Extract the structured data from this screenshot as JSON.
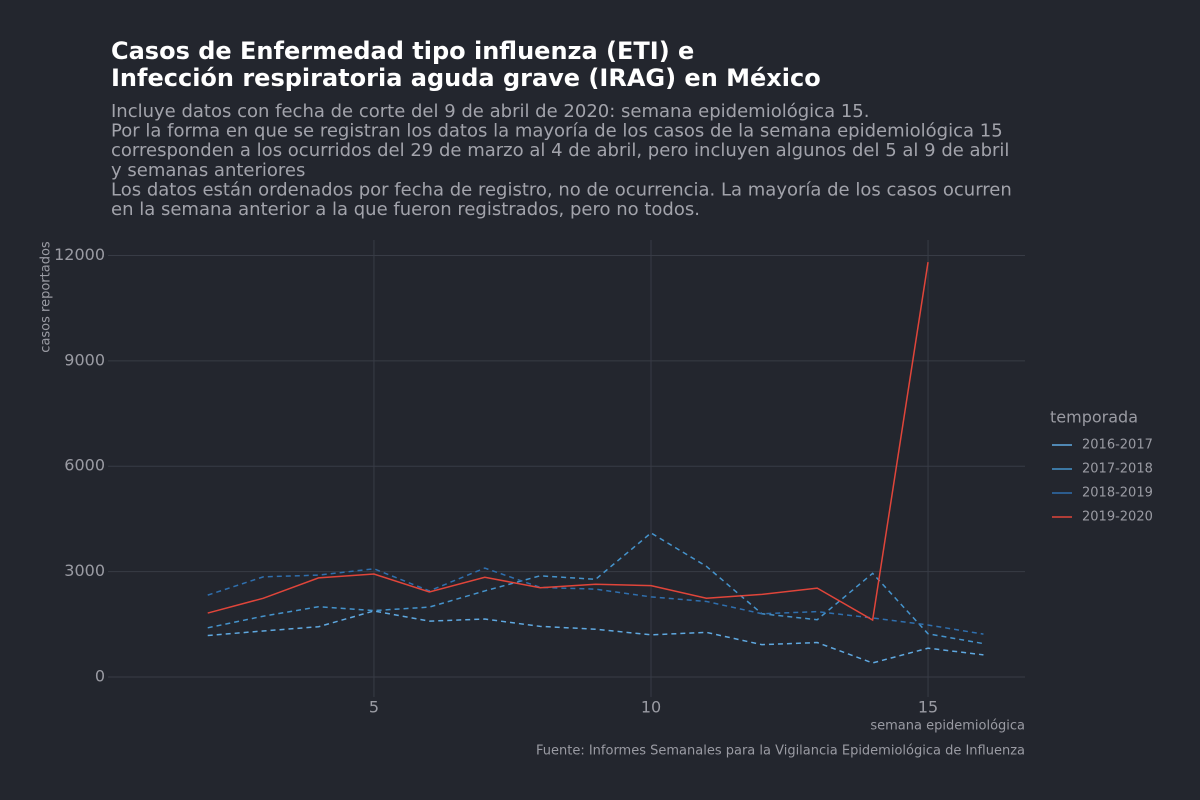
{
  "chart_data": {
    "type": "line",
    "title": [
      "Casos de Enfermedad tipo influenza (ETI) e",
      "Infección respiratoria aguda grave (IRAG) en México"
    ],
    "subtitle": [
      "Incluye datos con fecha de corte del 9 de abril de 2020: semana epidemiológica 15.",
      "Por la forma en que se registran los datos la mayoría de los casos de la semana epidemiológica 15",
      "corresponden a los ocurridos del 29 de marzo al 4 de abril, pero incluyen algunos del 5 al 9 de abril",
      "y semanas anteriores",
      "Los datos están ordenados por fecha de registro, no de ocurrencia. La mayoría de los casos ocurren",
      "en la semana anterior a la que fueron registrados, pero no todos."
    ],
    "x_label": "semana epidemiológica",
    "y_label": "casos reportados",
    "caption": "Fuente: Informes Semanales para la Vigilancia Epidemiológica de Influenza",
    "legend_title": "temporada",
    "legend_position": "right",
    "grid": true,
    "x": [
      2,
      3,
      4,
      5,
      6,
      7,
      8,
      9,
      10,
      11,
      12,
      13,
      14,
      15,
      16
    ],
    "xlim": [
      0.2,
      16.75
    ],
    "xticks": [
      5,
      10,
      15
    ],
    "ylim": [
      -570,
      12440
    ],
    "yticks": [
      0,
      3000,
      6000,
      9000,
      12000
    ],
    "series": [
      {
        "name": "2016-2017",
        "color": "#5fa8e0",
        "line_style": "dashed",
        "values": [
          1180,
          1310,
          1430,
          1880,
          1590,
          1650,
          1440,
          1360,
          1200,
          1270,
          920,
          980,
          400,
          820,
          630
        ]
      },
      {
        "name": "2017-2018",
        "color": "#4593cc",
        "line_style": "dashed",
        "values": [
          1400,
          1730,
          2000,
          1890,
          1990,
          2450,
          2880,
          2780,
          4100,
          3150,
          1800,
          1630,
          2950,
          1230,
          950
        ]
      },
      {
        "name": "2018-2019",
        "color": "#2f6fae",
        "line_style": "dashed",
        "values": [
          2330,
          2850,
          2900,
          3080,
          2450,
          3100,
          2550,
          2500,
          2280,
          2150,
          1800,
          1860,
          1680,
          1480,
          1220
        ]
      },
      {
        "name": "2019-2020",
        "color": "#e0453a",
        "line_style": "solid",
        "values": [
          1820,
          2240,
          2820,
          2930,
          2420,
          2840,
          2540,
          2640,
          2600,
          2240,
          2350,
          2530,
          1620,
          11810,
          null
        ]
      }
    ]
  }
}
